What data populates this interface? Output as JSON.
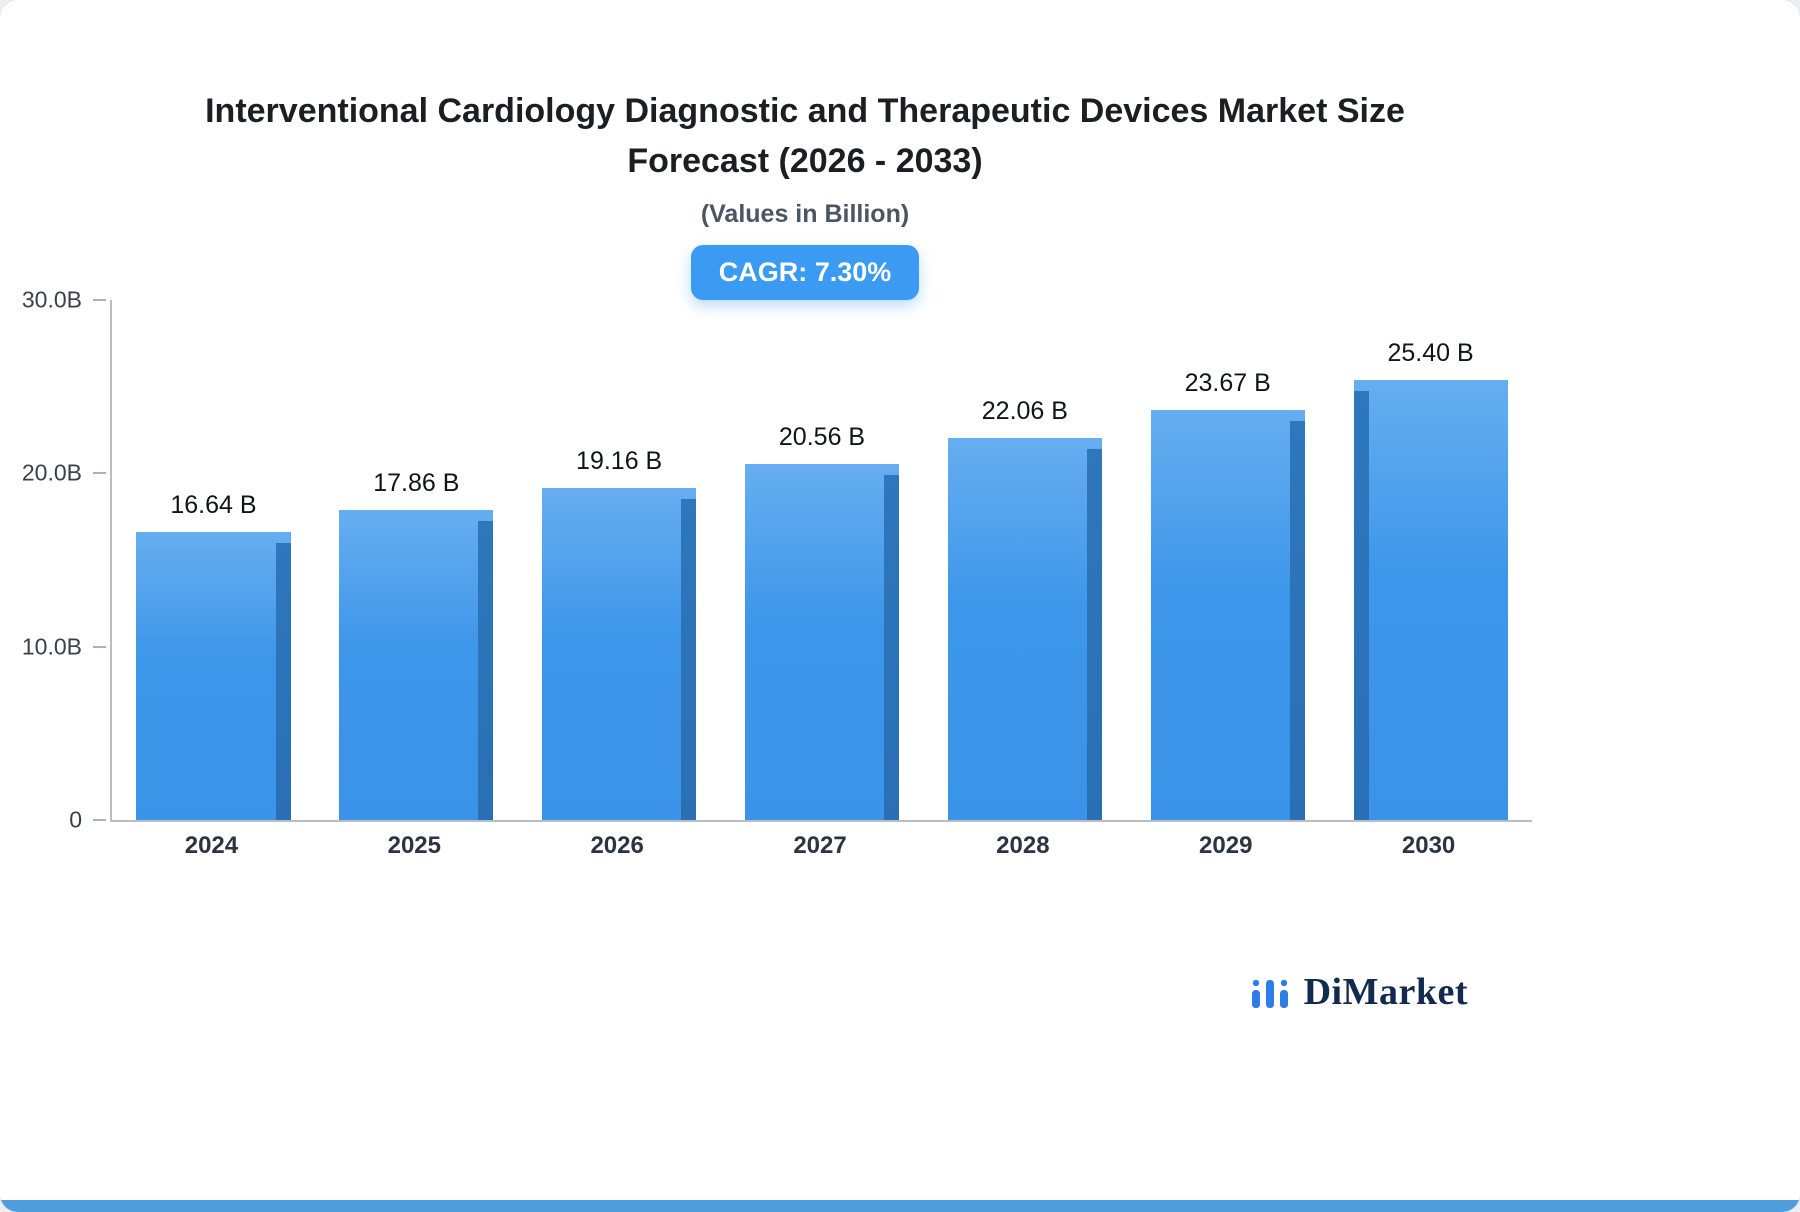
{
  "header": {
    "title_line1": "Interventional Cardiology Diagnostic and Therapeutic Devices Market Size",
    "title_line2": "Forecast (2026 - 2033)",
    "subtitle": "(Values in Billion)",
    "cagr_badge": "CAGR: 7.30%"
  },
  "chart_data": {
    "type": "bar",
    "title": "Interventional Cardiology Diagnostic and Therapeutic Devices Market Size Forecast (2026 - 2033)",
    "subtitle": "(Values in Billion)",
    "cagr_percent": 7.3,
    "categories": [
      "2024",
      "2025",
      "2026",
      "2027",
      "2028",
      "2029",
      "2030"
    ],
    "values": [
      16.64,
      17.86,
      19.16,
      20.56,
      22.06,
      23.67,
      25.4
    ],
    "value_labels": [
      "16.64 B",
      "17.86 B",
      "19.16 B",
      "20.56 B",
      "22.06 B",
      "23.67 B",
      "25.40 B"
    ],
    "ylim": [
      0,
      30
    ],
    "yticks": [
      {
        "value": 0,
        "label": "0"
      },
      {
        "value": 10,
        "label": "10.0B"
      },
      {
        "value": 20,
        "label": "20.0B"
      },
      {
        "value": 30,
        "label": "30.0B"
      }
    ],
    "grid": false,
    "legend": false,
    "bar_color": "#3d96e9",
    "bar_side_color": "#2a6fb4",
    "badge_color": "#3b9bf3"
  },
  "branding": {
    "logo_text": "DiMarket"
  }
}
